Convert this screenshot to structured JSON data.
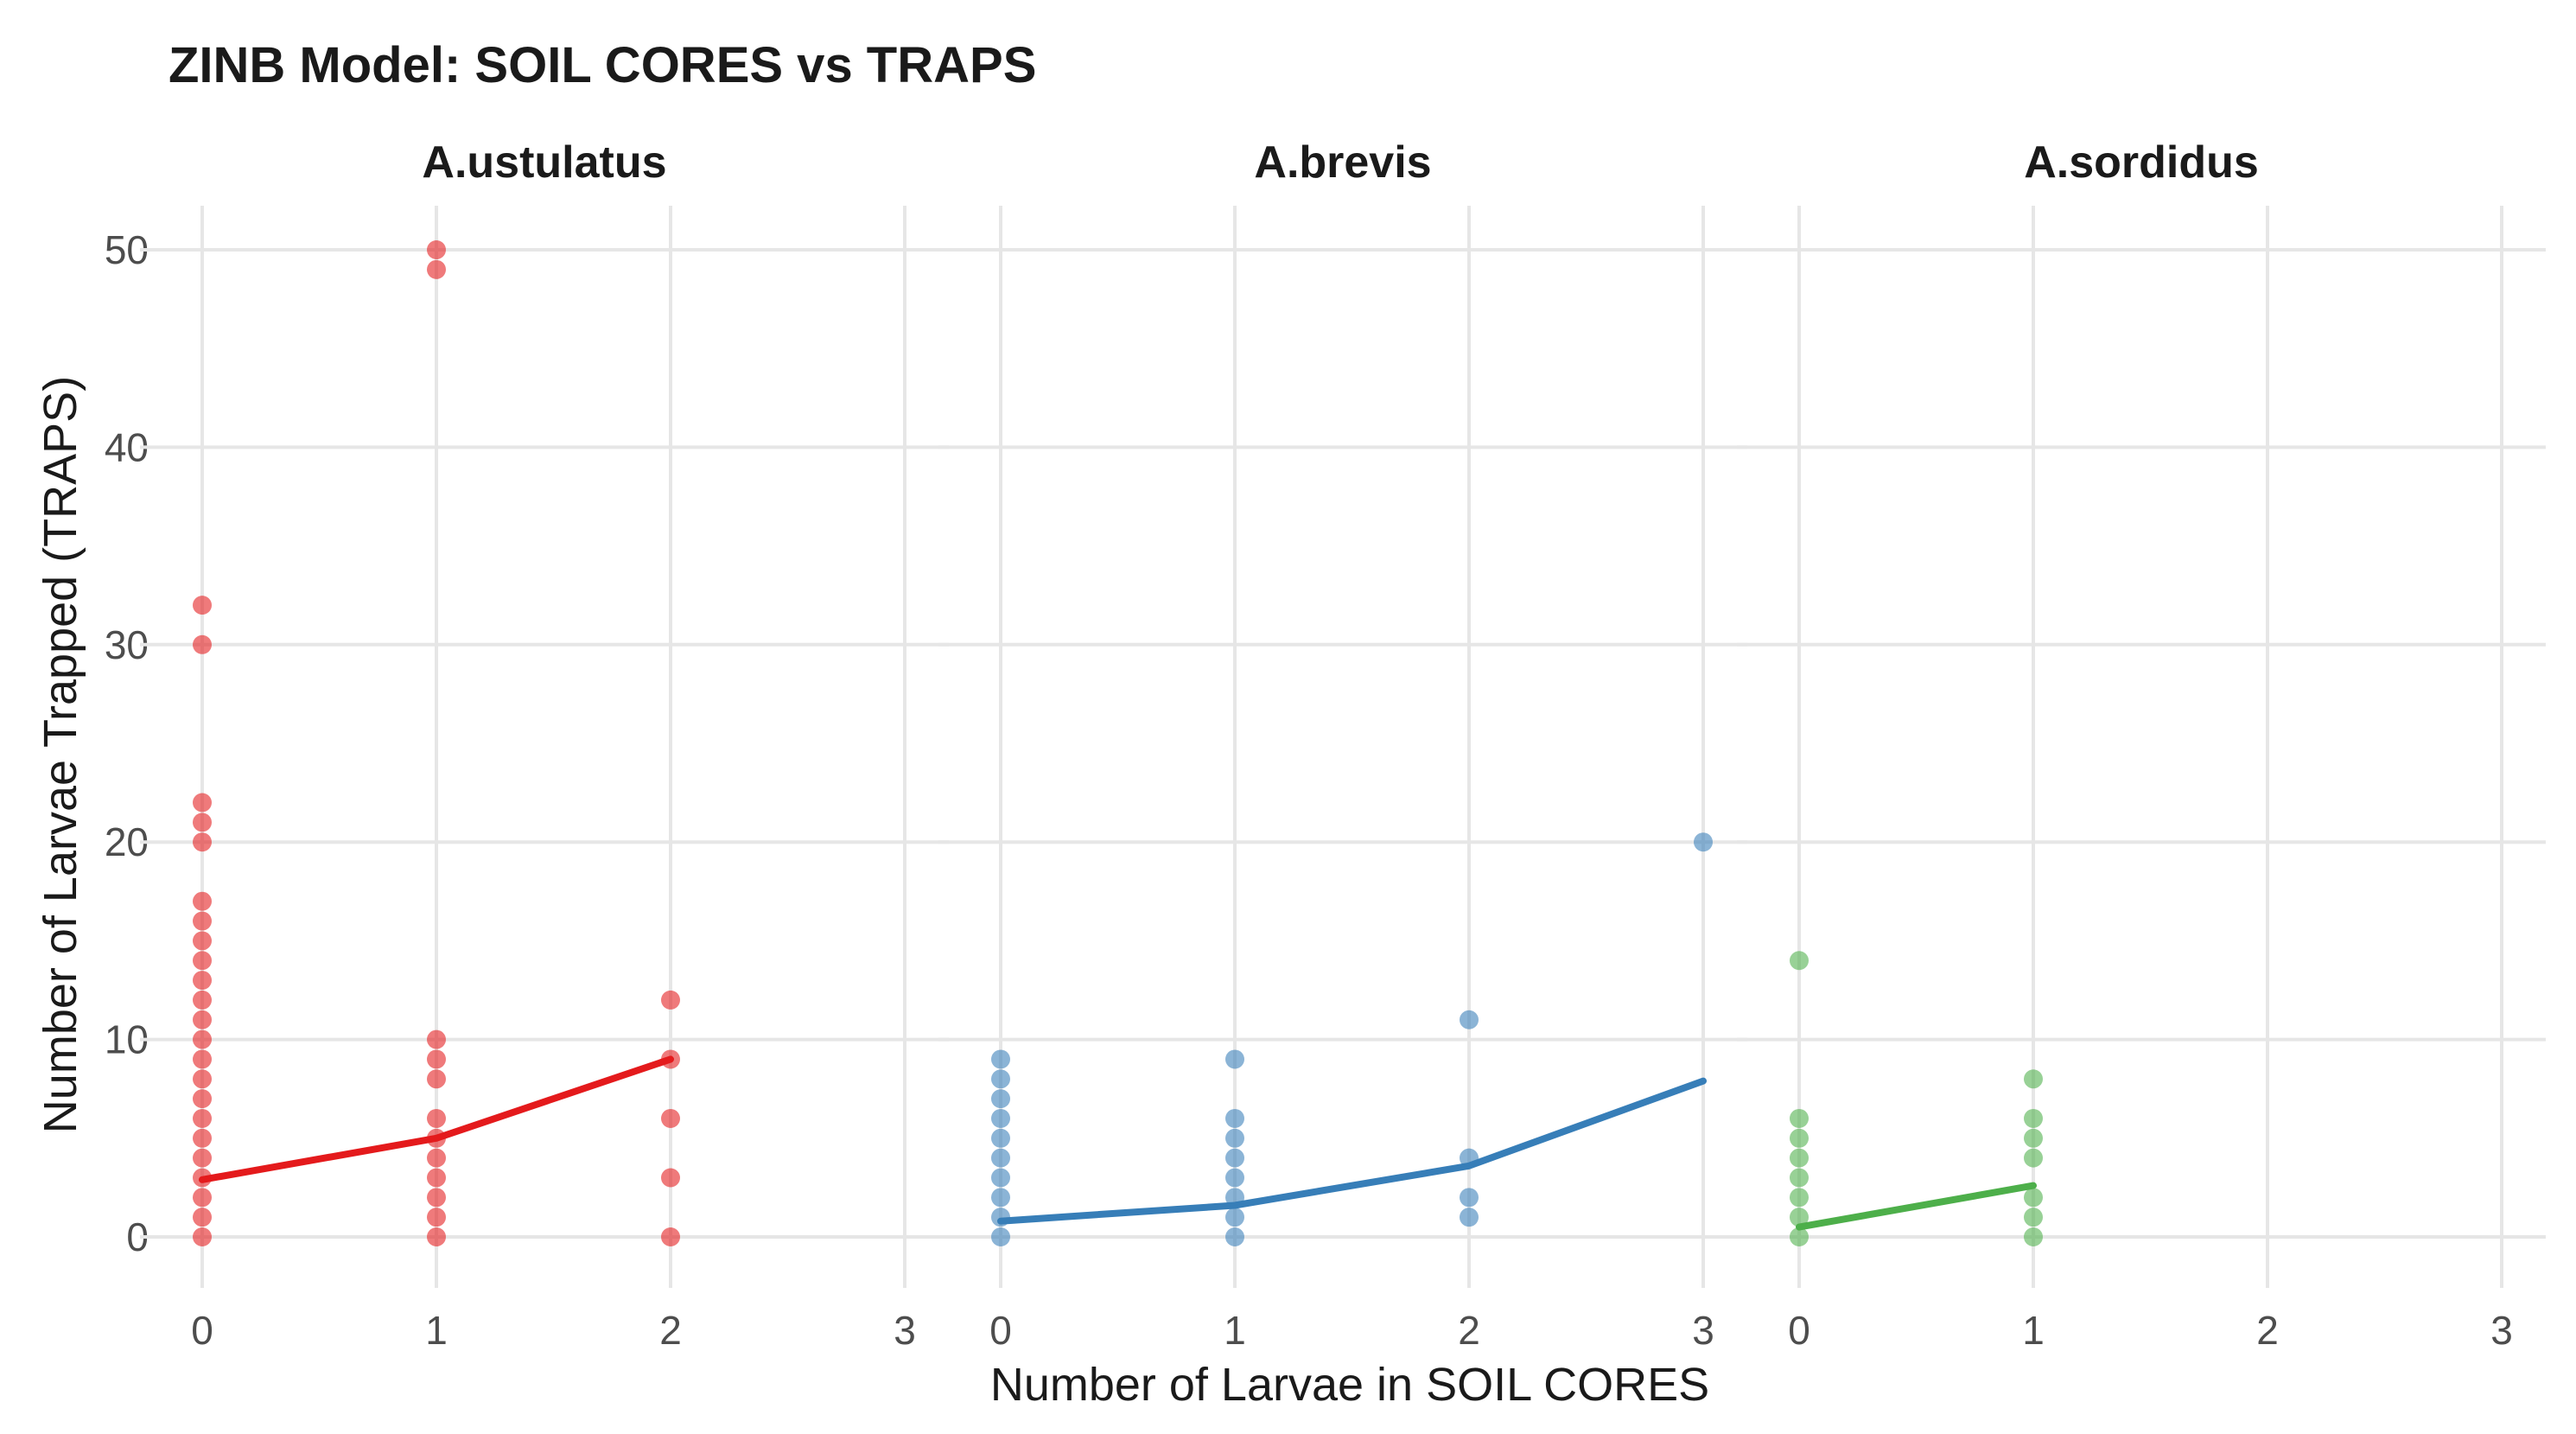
{
  "chart_data": {
    "type": "scatter",
    "title": "ZINB Model: SOIL CORES vs TRAPS",
    "xlabel": "Number of Larvae in SOIL CORES",
    "ylabel": "Number of Larvae Trapped (TRAPS)",
    "xlim": [
      0,
      3
    ],
    "ylim": [
      0,
      50
    ],
    "x_ticks": [
      0,
      1,
      2,
      3
    ],
    "y_ticks": [
      0,
      10,
      20,
      30,
      40,
      50
    ],
    "grid": true,
    "panels": [
      {
        "name": "A.ustulatus",
        "color": "#e41a1c",
        "points": [
          {
            "x": 0,
            "y": [
              0,
              1,
              2,
              3,
              4,
              5,
              6,
              7,
              8,
              9,
              10,
              11,
              12,
              13,
              14,
              15,
              16,
              17,
              20,
              21,
              22,
              30,
              32
            ]
          },
          {
            "x": 1,
            "y": [
              0,
              1,
              2,
              3,
              4,
              5,
              6,
              8,
              9,
              10,
              49,
              50
            ]
          },
          {
            "x": 2,
            "y": [
              0,
              3,
              6,
              9,
              12
            ]
          }
        ],
        "fit": [
          [
            0,
            2.9
          ],
          [
            1,
            5.0
          ],
          [
            2,
            9.0
          ]
        ]
      },
      {
        "name": "A.brevis",
        "color": "#377eb8",
        "points": [
          {
            "x": 0,
            "y": [
              0,
              1,
              2,
              3,
              4,
              5,
              6,
              7,
              8,
              9
            ]
          },
          {
            "x": 1,
            "y": [
              0,
              1,
              2,
              3,
              4,
              5,
              6,
              9
            ]
          },
          {
            "x": 2,
            "y": [
              1,
              2,
              4,
              11
            ]
          },
          {
            "x": 3,
            "y": [
              20
            ]
          }
        ],
        "fit": [
          [
            0,
            0.8
          ],
          [
            1,
            1.6
          ],
          [
            2,
            3.6
          ],
          [
            3,
            7.9
          ]
        ]
      },
      {
        "name": "A.sordidus",
        "color": "#4daf4a",
        "points": [
          {
            "x": 0,
            "y": [
              0,
              1,
              2,
              3,
              4,
              5,
              6,
              14
            ]
          },
          {
            "x": 1,
            "y": [
              0,
              1,
              2,
              4,
              5,
              6,
              8
            ]
          }
        ],
        "fit": [
          [
            0,
            0.5
          ],
          [
            1,
            2.6
          ]
        ]
      }
    ]
  }
}
